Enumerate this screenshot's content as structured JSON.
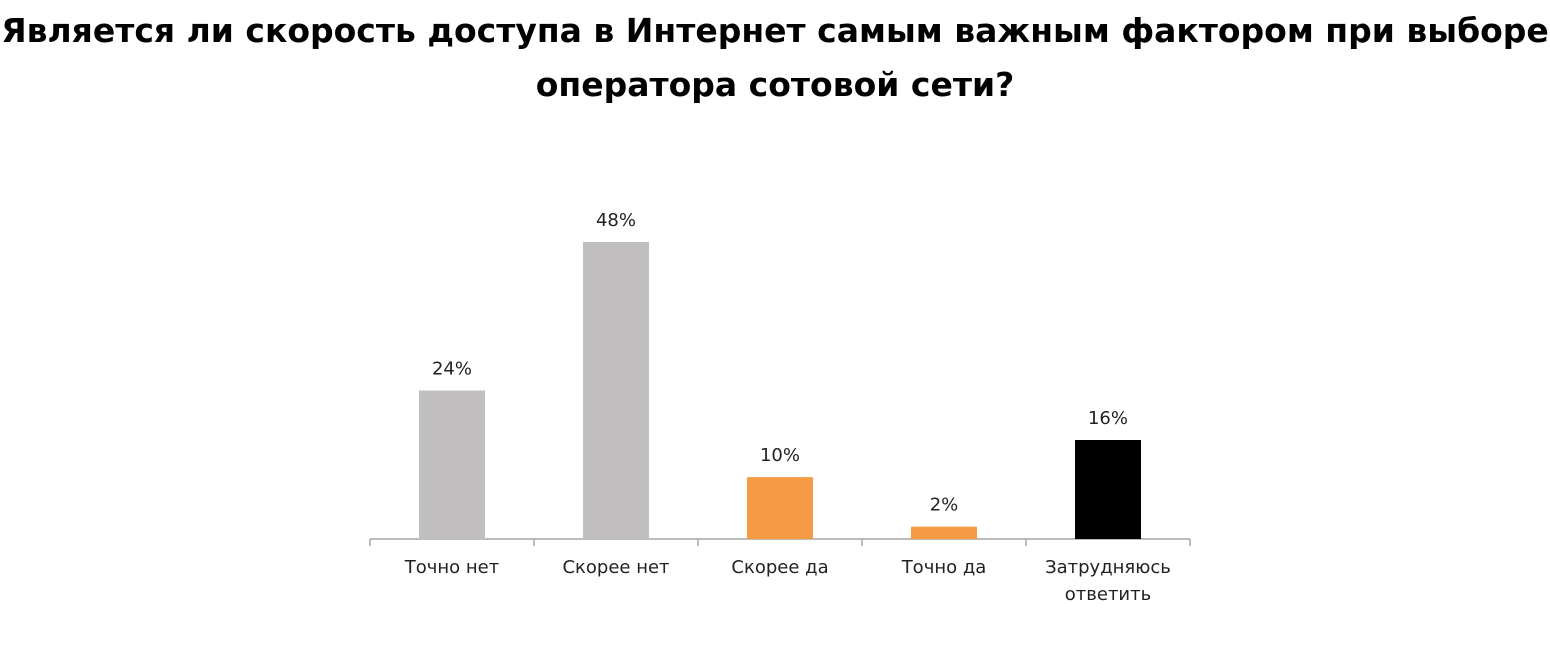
{
  "chart_data": {
    "type": "bar",
    "title_lines": [
      "Является ли скорость доступа в Интернет самым важным фактором при выборе",
      "оператора сотовой сети?"
    ],
    "categories": [
      [
        "Точно нет"
      ],
      [
        "Скорее нет"
      ],
      [
        "Скорее да"
      ],
      [
        "Точно да"
      ],
      [
        "Затрудняюсь",
        "ответить"
      ]
    ],
    "values": [
      24,
      48,
      10,
      2,
      16
    ],
    "value_labels": [
      "24%",
      "48%",
      "10%",
      "2%",
      "16%"
    ],
    "colors": [
      "#c0bebf",
      "#c0bebf",
      "#f59a45",
      "#f59a45",
      "#000000"
    ],
    "ylim": [
      0,
      50
    ],
    "grid": false,
    "legend": "none"
  }
}
